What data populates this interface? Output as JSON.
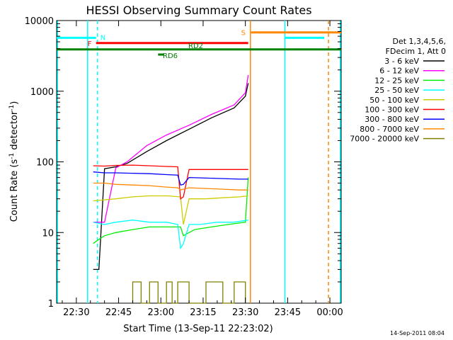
{
  "chart_data": {
    "type": "line",
    "title": "HESSI Observing Summary Count Rates",
    "xlabel": "Start Time (13-Sep-11 22:23:02)",
    "ylabel_main": "Count Rate (s",
    "ylabel_sup1": "-1",
    "ylabel_mid": " detector",
    "ylabel_sup2": "-1",
    "ylabel_end": ")",
    "footer": "14-Sep-2011 08:04",
    "x_ticks": [
      "22:30",
      "22:45",
      "23:00",
      "23:15",
      "23:30",
      "23:45",
      "00:00"
    ],
    "x_tick_minutes": [
      30,
      45,
      60,
      75,
      90,
      105,
      120
    ],
    "x_range_minutes": [
      23,
      124
    ],
    "y_ticks": [
      "1",
      "10",
      "100",
      "1000",
      "10000"
    ],
    "y_tick_values": [
      1,
      10,
      100,
      1000,
      10000
    ],
    "ylim": [
      1,
      10000
    ],
    "y_scale": "log",
    "legend_header": [
      "Det 1,3,4,5,6,",
      "FDecim 1, Att 0"
    ],
    "series": [
      {
        "name": "3 - 6 keV",
        "color": "#000000",
        "x": [
          36,
          38,
          40,
          44,
          48,
          55,
          62,
          70,
          78,
          86,
          90,
          91
        ],
        "y": [
          3,
          3,
          80,
          85,
          95,
          140,
          200,
          290,
          420,
          580,
          850,
          1300
        ]
      },
      {
        "name": "6 - 12 keV",
        "color": "#ff00ff",
        "x": [
          36,
          40,
          44,
          48,
          55,
          62,
          70,
          78,
          86,
          90,
          91
        ],
        "y": [
          14,
          14,
          82,
          100,
          170,
          240,
          330,
          470,
          640,
          950,
          1700
        ]
      },
      {
        "name": "12 - 25 keV",
        "color": "#00ee00",
        "x": [
          36,
          38,
          40,
          44,
          50,
          56,
          62,
          67,
          68,
          72,
          78,
          84,
          90,
          91
        ],
        "y": [
          7,
          8,
          9,
          10,
          11,
          12,
          12,
          12,
          9,
          11,
          12,
          13,
          14,
          60
        ]
      },
      {
        "name": "25 - 50 keV",
        "color": "#00ffff",
        "x": [
          36,
          40,
          44,
          50,
          56,
          62,
          66,
          67,
          68,
          70,
          74,
          80,
          86,
          91
        ],
        "y": [
          14,
          13,
          14,
          15,
          14,
          14,
          13,
          6,
          7,
          13,
          13,
          14,
          14,
          15
        ]
      },
      {
        "name": "50 - 100 keV",
        "color": "#cccc00",
        "x": [
          36,
          40,
          44,
          50,
          56,
          62,
          67,
          68,
          70,
          76,
          82,
          88,
          91
        ],
        "y": [
          28,
          29,
          30,
          32,
          33,
          33,
          32,
          13,
          30,
          30,
          31,
          32,
          33
        ]
      },
      {
        "name": "100 - 300 keV",
        "color": "#ff0000",
        "x": [
          36,
          40,
          44,
          50,
          56,
          62,
          66,
          67,
          68,
          70,
          76,
          82,
          88,
          91
        ],
        "y": [
          88,
          87,
          89,
          90,
          88,
          86,
          85,
          30,
          32,
          78,
          78,
          78,
          78,
          78
        ]
      },
      {
        "name": "300 - 800 keV",
        "color": "#0000ff",
        "x": [
          36,
          40,
          44,
          50,
          56,
          62,
          66,
          67,
          68,
          70,
          76,
          82,
          88,
          91
        ],
        "y": [
          72,
          70,
          70,
          69,
          68,
          66,
          65,
          47,
          48,
          60,
          59,
          58,
          57,
          57
        ]
      },
      {
        "name": "800 - 7000 keV",
        "color": "#ff8800",
        "x": [
          36,
          40,
          44,
          50,
          56,
          62,
          66,
          67,
          68,
          70,
          76,
          82,
          88,
          91
        ],
        "y": [
          50,
          50,
          48,
          47,
          46,
          44,
          43,
          40,
          41,
          43,
          42,
          41,
          40,
          40
        ]
      },
      {
        "name": "7000 - 20000 keV",
        "color": "#808000",
        "x": [
          50,
          50,
          53,
          53,
          56,
          56,
          59,
          59,
          62,
          62,
          64,
          64,
          66,
          66,
          70,
          70,
          76,
          76,
          82,
          82,
          86,
          86,
          90,
          90
        ],
        "y": [
          1,
          2,
          2,
          1,
          1,
          2,
          2,
          1,
          1,
          2,
          2,
          1,
          1,
          2,
          2,
          1,
          1,
          2,
          2,
          1,
          1,
          2,
          2,
          1
        ]
      }
    ],
    "annotations": [
      {
        "label": "N",
        "color": "#00ffff",
        "x_start": 23,
        "x_end": 37,
        "y": 5700
      },
      {
        "label": "",
        "color": "#00ffff",
        "x_start": 104,
        "x_end": 118,
        "y": 5700
      },
      {
        "label": "F",
        "color": "#ff0000",
        "x_start": 37,
        "x_end": 91,
        "y": 4800
      },
      {
        "label": "RD2",
        "color": "#008000",
        "x_start": 23,
        "x_end": 124,
        "y": 3900
      },
      {
        "label": "RD6",
        "color": "#008000",
        "x_start": 59,
        "x_end": 61,
        "y": 3300
      },
      {
        "label": "S",
        "color": "#ff8800",
        "x_start": 92,
        "x_end": 124,
        "y": 6800
      }
    ],
    "vlines": [
      {
        "x": 23.3,
        "color": "#00ffff",
        "style": "solid"
      },
      {
        "x": 34,
        "color": "#00ffff",
        "style": "solid"
      },
      {
        "x": 37.5,
        "color": "#00ffff",
        "style": "dashed"
      },
      {
        "x": 91.8,
        "color": "#ff8800",
        "style": "solid"
      },
      {
        "x": 104,
        "color": "#00ffff",
        "style": "solid"
      },
      {
        "x": 119.5,
        "color": "#ff8800",
        "style": "dashed"
      },
      {
        "x": 123.7,
        "color": "#00ffff",
        "style": "solid"
      }
    ]
  }
}
